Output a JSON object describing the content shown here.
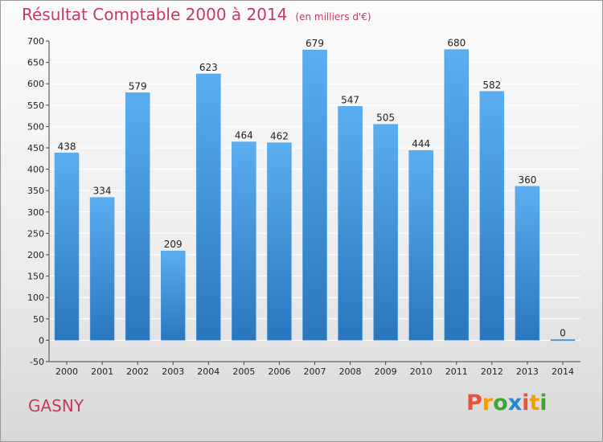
{
  "title": "Résultat Comptable 2000 à 2014",
  "subtitle": "(en milliers d'€)",
  "commune": "GASNY",
  "logo": {
    "letters": [
      "P",
      "r",
      "o",
      "x",
      "i",
      "t",
      "i"
    ],
    "colors": [
      "#e8533a",
      "#f0a000",
      "#3fa535",
      "#1e88d8",
      "#e8533a",
      "#f0a000",
      "#3fa535"
    ]
  },
  "colors": {
    "bar_top": "#5aaef0",
    "bar_bottom": "#2a76bd",
    "grid": "#ffffff",
    "title": "#c63a5d"
  },
  "chart_data": {
    "type": "bar",
    "title": "Résultat Comptable 2000 à 2014",
    "subtitle": "(en milliers d'€)",
    "xlabel": "",
    "ylabel": "",
    "categories": [
      "2000",
      "2001",
      "2002",
      "2003",
      "2004",
      "2005",
      "2006",
      "2007",
      "2008",
      "2009",
      "2010",
      "2011",
      "2012",
      "2013",
      "2014"
    ],
    "values": [
      438,
      334,
      579,
      209,
      623,
      464,
      462,
      679,
      547,
      505,
      444,
      680,
      582,
      360,
      0
    ],
    "ylim": [
      -50,
      700
    ],
    "yticks": [
      -50,
      0,
      50,
      100,
      150,
      200,
      250,
      300,
      350,
      400,
      450,
      500,
      550,
      600,
      650,
      700
    ],
    "grid": true,
    "legend": "none"
  }
}
